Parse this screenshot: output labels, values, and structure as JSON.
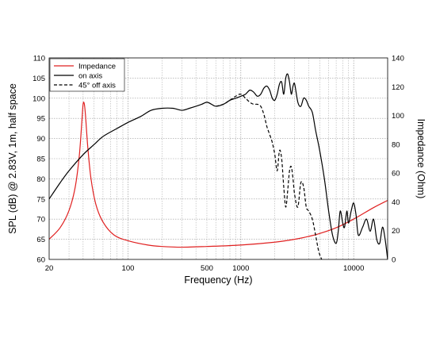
{
  "chart_data": {
    "type": "line",
    "xlabel": "Frequency (Hz)",
    "ylabel": "SPL (dB) @ 2.83V, 1m, half space",
    "y2label": "Impedance (Ohm)",
    "xscale": "log",
    "xlim": [
      20,
      20000
    ],
    "ylim": [
      60,
      110
    ],
    "y2lim": [
      0,
      140
    ],
    "grid": true,
    "legend_position": "top-left",
    "x_ticks": [
      "20",
      "100",
      "500",
      "1000",
      "10000"
    ],
    "y_ticks": [
      "60",
      "65",
      "70",
      "75",
      "80",
      "85",
      "90",
      "95",
      "100",
      "105",
      "110"
    ],
    "y2_ticks": [
      "0",
      "20",
      "40",
      "60",
      "80",
      "100",
      "120",
      "140"
    ],
    "colors": {
      "impedance": "#e02020",
      "on_axis": "#000000",
      "off_axis": "#000000"
    },
    "series": [
      {
        "name": "Impedance",
        "axis": "right",
        "style": "solid",
        "color": "#e02020",
        "x": [
          20,
          25,
          30,
          34,
          37,
          39,
          40,
          41,
          42,
          44,
          47,
          52,
          60,
          75,
          100,
          150,
          200,
          300,
          500,
          1000,
          2000,
          3000,
          4000,
          5000,
          7000,
          10000,
          15000,
          20000
        ],
        "y": [
          14,
          22,
          34,
          50,
          72,
          96,
          108,
          108,
          100,
          78,
          56,
          38,
          26,
          17,
          13,
          10,
          9,
          8.5,
          9,
          10,
          12,
          14,
          16,
          18,
          22,
          28,
          36,
          41
        ]
      },
      {
        "name": "on axis",
        "axis": "left",
        "style": "solid",
        "color": "#000000",
        "x": [
          20,
          25,
          30,
          40,
          50,
          60,
          80,
          100,
          130,
          160,
          200,
          250,
          300,
          350,
          400,
          450,
          500,
          550,
          600,
          700,
          800,
          900,
          1000,
          1100,
          1200,
          1300,
          1400,
          1500,
          1600,
          1700,
          1800,
          1900,
          2000,
          2100,
          2200,
          2300,
          2400,
          2500,
          2600,
          2700,
          2800,
          2900,
          3000,
          3200,
          3400,
          3600,
          3800,
          4000,
          4300,
          4600,
          5000,
          5500,
          6000,
          6500,
          7000,
          7300,
          7600,
          8000,
          8300,
          8700,
          9000,
          9500,
          10000,
          10500,
          11000,
          12000,
          13000,
          14000,
          15000,
          16000,
          17000,
          18000,
          19000,
          20000
        ],
        "y": [
          75,
          79,
          82,
          86,
          88.5,
          90.5,
          92.5,
          94,
          95.5,
          97,
          97.5,
          97.5,
          97,
          97.5,
          98,
          98.5,
          99,
          98.5,
          98,
          98.5,
          99.5,
          100,
          100.5,
          101,
          102,
          101.5,
          100.5,
          101,
          102.5,
          103,
          102,
          100,
          99.5,
          101,
          103.5,
          104,
          101,
          105,
          106,
          104,
          101,
          103,
          103.5,
          99,
          98,
          100,
          99.5,
          98,
          96.5,
          92,
          87,
          80,
          72,
          66,
          64,
          67,
          72,
          69,
          68,
          72,
          69,
          72,
          74,
          71,
          66,
          68,
          70,
          67,
          70,
          65,
          64,
          68,
          65,
          60
        ]
      },
      {
        "name": "45° off axis",
        "axis": "left",
        "style": "dashed",
        "color": "#000000",
        "x": [
          600,
          700,
          800,
          900,
          1000,
          1100,
          1200,
          1300,
          1400,
          1500,
          1600,
          1700,
          1800,
          1900,
          2000,
          2100,
          2200,
          2300,
          2400,
          2500,
          2600,
          2700,
          2800,
          2900,
          3000,
          3200,
          3400,
          3600,
          3800,
          4000,
          4300,
          4600,
          4900,
          5200,
          5500
        ],
        "y": [
          98,
          98.5,
          99.5,
          100.5,
          101,
          100,
          99,
          98.5,
          98.5,
          98,
          96,
          93,
          91,
          89,
          86,
          82,
          87,
          85,
          78,
          73,
          77,
          82,
          83,
          80,
          76,
          73,
          79,
          78,
          73,
          72,
          70,
          66,
          62,
          60,
          58
        ]
      }
    ]
  }
}
